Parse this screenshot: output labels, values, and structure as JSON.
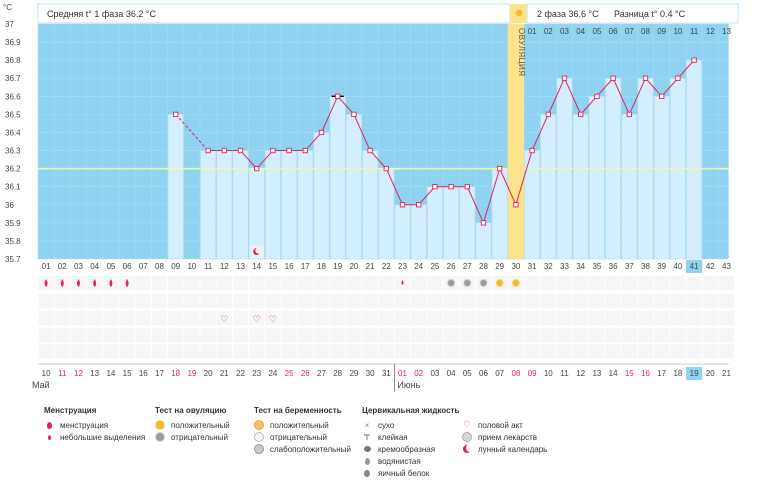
{
  "chart_data": {
    "type": "line",
    "y_unit": "°C",
    "ylim": [
      35.7,
      37.0
    ],
    "yticks": [
      35.7,
      35.8,
      35.9,
      36,
      36.1,
      36.2,
      36.3,
      36.4,
      36.5,
      36.6,
      36.7,
      36.8,
      36.9,
      37
    ],
    "cover_line": 36.2,
    "ovulation_day": 30,
    "ovulation_label": "ОВУЛЯЦИЯ",
    "phase1_label": "Средняя t° 1 фаза 36.2 °C",
    "phase2_label": "2 фаза 36.6 °C",
    "diff_label": "Разница t° 0.4 °C",
    "cycle_days": [
      "01",
      "02",
      "03",
      "04",
      "05",
      "06",
      "07",
      "08",
      "09",
      "10",
      "11",
      "12",
      "13",
      "14",
      "15",
      "16",
      "17",
      "18",
      "19",
      "20",
      "21",
      "22",
      "23",
      "24",
      "25",
      "26",
      "27",
      "28",
      "29",
      "30",
      "31",
      "32",
      "33",
      "34",
      "35",
      "36",
      "37",
      "38",
      "39",
      "40",
      "41",
      "42",
      "43"
    ],
    "current_cycle_day": 41,
    "phase2_days": [
      "01",
      "02",
      "03",
      "04",
      "05",
      "06",
      "07",
      "08",
      "09",
      "10",
      "11",
      "12",
      "13"
    ],
    "phase2_current": "11",
    "series": [
      {
        "points": [
          [
            9,
            36.5
          ],
          [
            11,
            36.3
          ],
          [
            12,
            36.3
          ],
          [
            13,
            36.3
          ],
          [
            14,
            36.2
          ],
          [
            15,
            36.3
          ],
          [
            16,
            36.3
          ],
          [
            17,
            36.3
          ],
          [
            18,
            36.4
          ],
          [
            19,
            36.6
          ],
          [
            20,
            36.5
          ],
          [
            21,
            36.3
          ],
          [
            22,
            36.2
          ],
          [
            23,
            36.0
          ],
          [
            24,
            36.0
          ],
          [
            25,
            36.1
          ],
          [
            26,
            36.1
          ],
          [
            27,
            36.1
          ],
          [
            28,
            35.9
          ],
          [
            29,
            36.2
          ],
          [
            30,
            36.0
          ],
          [
            31,
            36.3
          ],
          [
            32,
            36.5
          ],
          [
            33,
            36.7
          ],
          [
            34,
            36.5
          ],
          [
            35,
            36.6
          ],
          [
            36,
            36.7
          ],
          [
            37,
            36.5
          ],
          [
            38,
            36.7
          ],
          [
            39,
            36.6
          ],
          [
            40,
            36.7
          ],
          [
            41,
            36.8
          ]
        ],
        "dashed_segments": [
          [
            9,
            11
          ]
        ],
        "marked_day": 19
      }
    ],
    "menstruation_days": [
      1,
      2,
      3,
      4,
      5,
      6
    ],
    "small_discharge_days": [
      23
    ],
    "ovulation_test_negative_days": [
      26,
      27,
      28
    ],
    "ovulation_test_positive_days": [
      29,
      30
    ],
    "intercourse_days": [
      12,
      14,
      15
    ],
    "lunar_day": 14,
    "dates": [
      "10",
      "11",
      "12",
      "13",
      "14",
      "15",
      "16",
      "17",
      "18",
      "19",
      "20",
      "21",
      "22",
      "23",
      "24",
      "25",
      "26",
      "27",
      "28",
      "29",
      "30",
      "31",
      "01",
      "02",
      "03",
      "04",
      "05",
      "06",
      "07",
      "08",
      "09",
      "10",
      "11",
      "12",
      "13",
      "14",
      "15",
      "16",
      "17",
      "18",
      "19",
      "20",
      "21"
    ],
    "weekend_dates_idx": [
      1,
      2,
      8,
      9,
      15,
      16,
      22,
      23,
      29,
      30,
      36,
      37
    ],
    "current_date_idx": 40,
    "month_may": "Май",
    "month_june": "Июнь",
    "month_june_start_idx": 22
  },
  "legend": {
    "menstruation": {
      "title": "Менструация",
      "items": [
        "менструация",
        "небольшие выделения"
      ]
    },
    "ovulation_test": {
      "title": "Тест на овуляцию",
      "items": [
        "положительный",
        "отрицательный"
      ]
    },
    "pregnancy_test": {
      "title": "Тест на беременность",
      "items": [
        "положительный",
        "отрицательный",
        "слабоположительный"
      ]
    },
    "cervical": {
      "title": "Цервикальная жидкость",
      "items": [
        "сухо",
        "клейкая",
        "кремообразная",
        "водянистая",
        "яичный белок"
      ]
    },
    "other": {
      "items": [
        "половой акт",
        "прием лекарств",
        "лунный календарь"
      ]
    }
  },
  "colors": {
    "bg_blue": "#8fd3f0",
    "bar_fill": "#d3efff",
    "bar_stroke": "#b4dcf2",
    "line": "#e0245e",
    "ovulation": "#fbe48a",
    "cover": "#f7f6a0"
  }
}
